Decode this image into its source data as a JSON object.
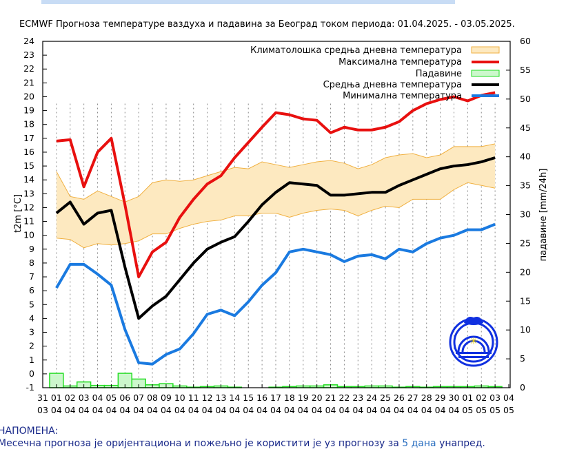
{
  "chart_data": {
    "type": "line",
    "title": "ECMWF Прогноза температуре ваздуха и падавина за Београд током периода: 01.04.2025. - 03.05.2025.",
    "ylabel": "t2m [°C]",
    "y2label": "падавине [mm/24h]",
    "ylim": [
      -1,
      24
    ],
    "y2lim": [
      0,
      60
    ],
    "yticks": [
      "-1",
      "0",
      "1",
      "2",
      "3",
      "4",
      "5",
      "6",
      "7",
      "8",
      "9",
      "10",
      "11",
      "12",
      "13",
      "14",
      "15",
      "16",
      "17",
      "18",
      "19",
      "20",
      "21",
      "22",
      "23",
      "24"
    ],
    "y2ticks": [
      "0",
      "5",
      "10",
      "15",
      "20",
      "25",
      "30",
      "35",
      "40",
      "45",
      "50",
      "55",
      "60"
    ],
    "x_days": [
      "31",
      "01",
      "02",
      "03",
      "04",
      "05",
      "06",
      "07",
      "08",
      "09",
      "10",
      "11",
      "12",
      "13",
      "14",
      "15",
      "16",
      "17",
      "18",
      "19",
      "20",
      "21",
      "22",
      "23",
      "24",
      "25",
      "26",
      "27",
      "28",
      "29",
      "30",
      "01",
      "02",
      "03",
      "04"
    ],
    "x_months": [
      "03",
      "04",
      "04",
      "04",
      "04",
      "04",
      "04",
      "04",
      "04",
      "04",
      "04",
      "04",
      "04",
      "04",
      "04",
      "04",
      "04",
      "04",
      "04",
      "04",
      "04",
      "04",
      "04",
      "04",
      "04",
      "04",
      "04",
      "04",
      "04",
      "04",
      "04",
      "05",
      "05",
      "05",
      "05"
    ],
    "legend_placement": "top-right",
    "grid": "vertical dashed",
    "legend": {
      "clim": "Климатолошка средња дневна температура",
      "max": "Максимална температура",
      "precip": "Падавине",
      "mean": "Средња дневна температура",
      "min": "Минимална температура"
    },
    "colors": {
      "clim_fill": "#fde9c0",
      "clim_edge": "#f0b040",
      "max": "#e8100f",
      "precip_fill": "#ccf7cc",
      "precip_edge": "#22dd22",
      "mean": "#000000",
      "min": "#1a7ae0"
    },
    "series": {
      "max": [
        16.8,
        16.9,
        13.5,
        16.0,
        17.0,
        12.2,
        7.0,
        8.8,
        9.5,
        11.3,
        12.6,
        13.7,
        14.3,
        15.6,
        16.7,
        17.8,
        18.85,
        18.7,
        18.4,
        18.3,
        17.4,
        17.8,
        17.6,
        17.6,
        17.8,
        18.2,
        19.0,
        19.5,
        19.8,
        20.0,
        19.7,
        20.1,
        20.3
      ],
      "mean": [
        11.6,
        12.4,
        10.8,
        11.6,
        11.8,
        7.7,
        4.0,
        4.9,
        5.6,
        6.8,
        8.0,
        9.0,
        9.5,
        9.9,
        11.0,
        12.2,
        13.1,
        13.8,
        13.7,
        13.6,
        12.9,
        12.9,
        13.0,
        13.1,
        13.1,
        13.6,
        14.0,
        14.4,
        14.8,
        15.0,
        15.1,
        15.3,
        15.6
      ],
      "min": [
        6.2,
        7.9,
        7.9,
        7.2,
        6.4,
        3.2,
        0.8,
        0.7,
        1.4,
        1.8,
        2.9,
        4.3,
        4.6,
        4.2,
        5.2,
        6.4,
        7.3,
        8.8,
        9.0,
        8.8,
        8.6,
        8.1,
        8.5,
        8.6,
        8.3,
        9.0,
        8.8,
        9.4,
        9.8,
        10.0,
        10.4,
        10.4,
        10.8
      ],
      "clim_upper": [
        14.6,
        12.8,
        12.6,
        13.2,
        12.8,
        12.4,
        12.8,
        13.8,
        14.0,
        13.9,
        14.0,
        14.3,
        14.6,
        14.9,
        14.8,
        15.3,
        15.1,
        14.9,
        15.1,
        15.3,
        15.4,
        15.2,
        14.8,
        15.1,
        15.6,
        15.8,
        15.9,
        15.6,
        15.8,
        16.4,
        16.4,
        16.4,
        16.6
      ],
      "clim_lower": [
        9.8,
        9.7,
        9.1,
        9.4,
        9.3,
        9.4,
        9.6,
        10.1,
        10.1,
        10.5,
        10.8,
        11.0,
        11.1,
        11.4,
        11.4,
        11.6,
        11.6,
        11.3,
        11.6,
        11.8,
        11.9,
        11.8,
        11.4,
        11.8,
        12.1,
        12.0,
        12.6,
        12.6,
        12.6,
        13.3,
        13.8,
        13.6,
        13.4
      ],
      "precip_mm": [
        2.5,
        0.3,
        1.0,
        0.4,
        0.4,
        2.5,
        1.5,
        0.5,
        0.7,
        0.3,
        0.1,
        0.2,
        0.3,
        0.1,
        0,
        0,
        0.1,
        0.2,
        0.3,
        0.3,
        0.5,
        0.2,
        0.2,
        0.3,
        0.3,
        0.1,
        0.2,
        0.1,
        0.2,
        0.2,
        0.2,
        0.3,
        0.2
      ]
    }
  },
  "logo_text": "РХМЗ Србије",
  "note": {
    "heading": "НАПОМЕНА:",
    "text_before": "Месечна прогноза је оријентациона и пожељно је користити је уз прогнозу за ",
    "link": "5 дана",
    "text_after": " унапред."
  }
}
